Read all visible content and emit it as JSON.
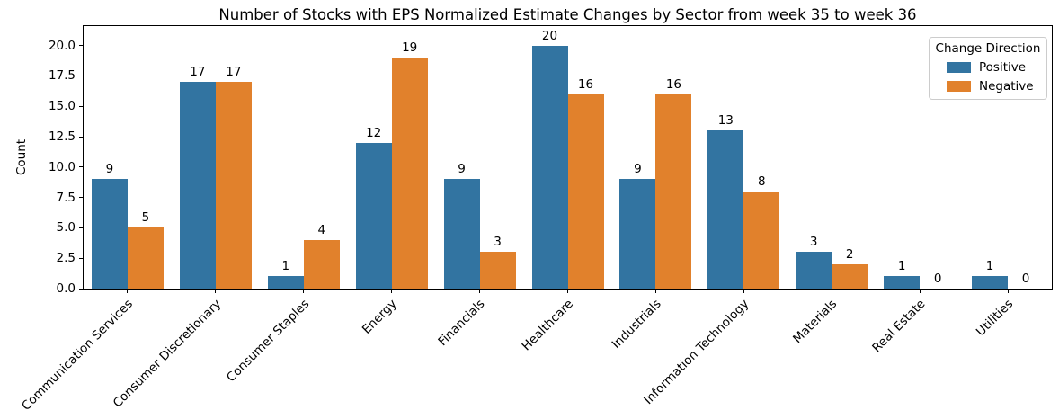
{
  "chart_data": {
    "type": "bar",
    "title": "Number of Stocks with EPS Normalized Estimate Changes by Sector from week 35 to week 36",
    "xlabel": "",
    "ylabel": "Count",
    "legend_title": "Change Direction",
    "legend_position": "upper right",
    "grid": false,
    "bar_value_labels_shown": true,
    "x_tick_rotation_degrees": 45,
    "categories": [
      "Communication Services",
      "Consumer Discretionary",
      "Consumer Staples",
      "Energy",
      "Financials",
      "Healthcare",
      "Industrials",
      "Information Technology",
      "Materials",
      "Real Estate",
      "Utilities"
    ],
    "series": [
      {
        "name": "Positive",
        "color": "#3274a1",
        "values": [
          9,
          17,
          1,
          12,
          9,
          20,
          9,
          13,
          3,
          1,
          1
        ]
      },
      {
        "name": "Negative",
        "color": "#e1812c",
        "values": [
          5,
          17,
          4,
          19,
          3,
          16,
          16,
          8,
          2,
          0,
          0
        ]
      }
    ],
    "ytick_labels": [
      "0.0",
      "2.5",
      "5.0",
      "7.5",
      "10.0",
      "12.5",
      "15.0",
      "17.5",
      "20.0"
    ],
    "yticks": [
      0,
      2.5,
      5,
      7.5,
      10,
      12.5,
      15,
      17.5,
      20
    ],
    "ylim": [
      0,
      21.6
    ]
  },
  "colors": {
    "positive": "#3274a1",
    "negative": "#e1812c",
    "axis": "#000000",
    "text": "#000000",
    "legend_border": "#cccccc",
    "background": "#ffffff"
  }
}
